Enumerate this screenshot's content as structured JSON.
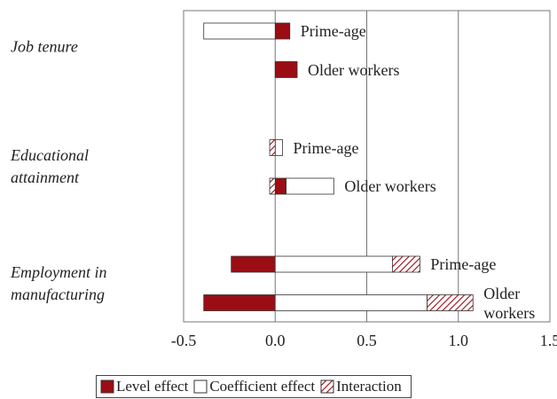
{
  "chart_data": {
    "type": "stacked-barh",
    "groups": [
      {
        "name": "Job tenure",
        "categories": [
          "Prime-age",
          "Older workers"
        ]
      },
      {
        "name": "Educational attainment",
        "categories": [
          "Prime-age",
          "Older workers"
        ]
      },
      {
        "name": "Employment in manufacturing",
        "categories": [
          "Prime-age",
          "Older workers"
        ]
      }
    ],
    "series": [
      {
        "name": "Level effect",
        "color": "#9b0d14",
        "fill": "solid",
        "values": [
          0.08,
          0.12,
          0,
          0.06,
          -0.24,
          -0.39
        ]
      },
      {
        "name": "Coefficient effect",
        "color": "#ffffff",
        "fill": "solid",
        "values": [
          -0.39,
          0,
          0.04,
          0.26,
          0.64,
          0.83
        ]
      },
      {
        "name": "Interaction",
        "color": "#9b0d14",
        "fill": "hatched",
        "values": [
          0,
          0,
          -0.03,
          -0.03,
          0.15,
          0.25
        ]
      }
    ],
    "xlim": [
      -0.5,
      1.5
    ],
    "xticks": [
      -0.5,
      {
        "value": 0,
        "label": "0.0"
      },
      0.5,
      {
        "value": 1,
        "label": "1.0"
      },
      1.5
    ],
    "grid": true,
    "legend": "bottom"
  }
}
